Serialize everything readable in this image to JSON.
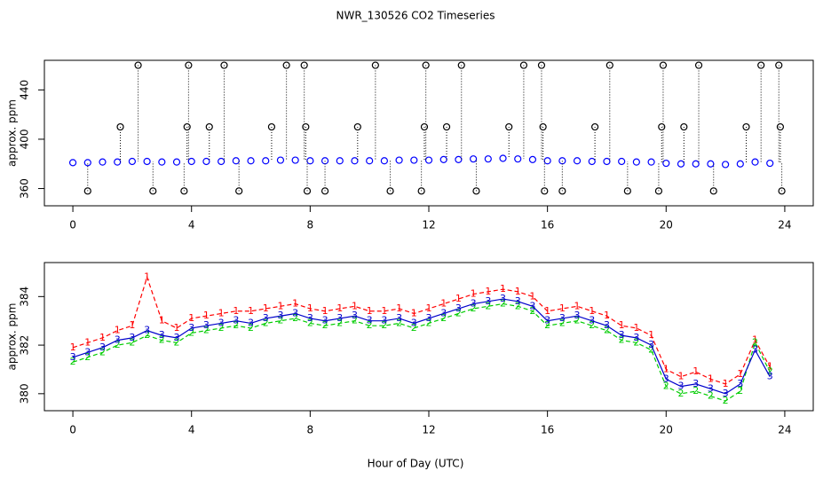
{
  "title": "NWR_130526  CO2 Timeseries",
  "xlabel": "Hour of Day (UTC)",
  "chart_data": [
    {
      "type": "scatter",
      "ylabel": "approx. ppm",
      "xlim": [
        -0.96,
        24.96
      ],
      "xticks": [
        0,
        4,
        8,
        12,
        16,
        20,
        24
      ],
      "ylim": [
        346,
        464
      ],
      "yticks": [
        360,
        400,
        440
      ],
      "series": [
        {
          "color": "#0000ff",
          "x": [
            0,
            0.5,
            1,
            1.5,
            2,
            2.5,
            3,
            3.5,
            4,
            4.5,
            5,
            5.5,
            6,
            6.5,
            7,
            7.5,
            8,
            8.5,
            9,
            9.5,
            10,
            10.5,
            11,
            11.5,
            12,
            12.5,
            13,
            13.5,
            14,
            14.5,
            15,
            15.5,
            16,
            16.5,
            17,
            17.5,
            18,
            18.5,
            19,
            19.5,
            20,
            20.5,
            21,
            21.5,
            22,
            22.5,
            23,
            23.5
          ],
          "values": [
            381,
            381,
            381.5,
            381.5,
            382,
            382,
            381.5,
            381.5,
            382,
            382,
            382,
            382.5,
            382.5,
            382.5,
            383,
            383,
            382.5,
            382.5,
            382.5,
            382.5,
            382.5,
            382.5,
            383,
            383,
            383,
            383.5,
            383.5,
            384,
            384,
            384.5,
            384,
            383.5,
            382.5,
            382.5,
            382.5,
            382,
            382,
            382,
            381.5,
            381.5,
            380.5,
            380,
            380,
            380,
            379.5,
            380,
            381.5,
            380.5
          ]
        },
        {
          "color": "#000000",
          "drop": true,
          "x": [
            2.2,
            3.9,
            5.1,
            7.2,
            7.8,
            10.2,
            11.9,
            13.1,
            15.2,
            15.8,
            18.1,
            19.9,
            21.1,
            23.2,
            23.8,
            1.6,
            3.85,
            4.6,
            6.7,
            7.85,
            9.6,
            11.85,
            12.6,
            14.7,
            15.85,
            17.6,
            19.85,
            20.6,
            22.7,
            23.85,
            0.5,
            2.7,
            3.75,
            5.6,
            7.9,
            8.5,
            10.7,
            11.75,
            13.6,
            15.9,
            16.5,
            18.7,
            19.75,
            21.6,
            23.9
          ],
          "values": [
            460,
            460,
            460,
            460,
            460,
            460,
            460,
            460,
            460,
            460,
            460,
            460,
            460,
            460,
            460,
            410,
            410,
            410,
            410,
            410,
            410,
            410,
            410,
            410,
            410,
            410,
            410,
            410,
            410,
            410,
            358,
            358,
            358,
            358,
            358,
            358,
            358,
            358,
            358,
            358,
            358,
            358,
            358,
            358,
            358
          ]
        }
      ]
    },
    {
      "type": "line",
      "ylabel": "approx. ppm",
      "xlim": [
        -0.96,
        24.96
      ],
      "xticks": [
        0,
        4,
        8,
        12,
        16,
        20,
        24
      ],
      "ylim": [
        379.3,
        385.4
      ],
      "yticks": [
        380,
        382,
        384
      ],
      "x": [
        0,
        0.5,
        1,
        1.5,
        2,
        2.5,
        3,
        3.5,
        4,
        4.5,
        5,
        5.5,
        6,
        6.5,
        7,
        7.5,
        8,
        8.5,
        9,
        9.5,
        10,
        10.5,
        11,
        11.5,
        12,
        12.5,
        13,
        13.5,
        14,
        14.5,
        15,
        15.5,
        16,
        16.5,
        17,
        17.5,
        18,
        18.5,
        19,
        19.5,
        20,
        20.5,
        21,
        21.5,
        22,
        22.5,
        23,
        23.5
      ],
      "series": [
        {
          "marker": "1",
          "color": "#ff0000",
          "dashed": true,
          "values": [
            381.9,
            382.1,
            382.3,
            382.6,
            382.8,
            384.8,
            383.0,
            382.7,
            383.1,
            383.2,
            383.3,
            383.4,
            383.4,
            383.5,
            383.6,
            383.7,
            383.5,
            383.4,
            383.5,
            383.6,
            383.4,
            383.4,
            383.5,
            383.3,
            383.5,
            383.7,
            383.9,
            384.1,
            384.2,
            384.3,
            384.2,
            384.0,
            383.4,
            383.5,
            383.6,
            383.4,
            383.2,
            382.8,
            382.7,
            382.4,
            381.0,
            380.7,
            380.9,
            380.6,
            380.4,
            380.8,
            382.2,
            381.1
          ]
        },
        {
          "marker": "2",
          "color": "#00cc00",
          "dashed": true,
          "values": [
            381.3,
            381.5,
            381.7,
            382.0,
            382.1,
            382.4,
            382.2,
            382.1,
            382.5,
            382.6,
            382.7,
            382.8,
            382.7,
            382.9,
            383.0,
            383.1,
            382.9,
            382.8,
            382.9,
            383.0,
            382.8,
            382.8,
            382.9,
            382.7,
            382.9,
            383.1,
            383.3,
            383.5,
            383.6,
            383.7,
            383.6,
            383.4,
            382.8,
            382.9,
            383.0,
            382.8,
            382.6,
            382.2,
            382.1,
            381.8,
            380.3,
            380.0,
            380.1,
            379.9,
            379.7,
            380.1,
            382.1,
            380.9
          ]
        },
        {
          "marker": "3",
          "color": "#0000cc",
          "dashed": false,
          "values": [
            381.5,
            381.7,
            381.9,
            382.2,
            382.3,
            382.6,
            382.4,
            382.3,
            382.7,
            382.8,
            382.9,
            383.0,
            382.9,
            383.1,
            383.2,
            383.3,
            383.1,
            383.0,
            383.1,
            383.2,
            383.0,
            383.0,
            383.1,
            382.9,
            383.1,
            383.3,
            383.5,
            383.7,
            383.8,
            383.9,
            383.8,
            383.6,
            383.0,
            383.1,
            383.2,
            383.0,
            382.8,
            382.4,
            382.3,
            382.0,
            380.6,
            380.3,
            380.4,
            380.2,
            380.0,
            380.4,
            381.8,
            380.7
          ]
        }
      ]
    }
  ]
}
